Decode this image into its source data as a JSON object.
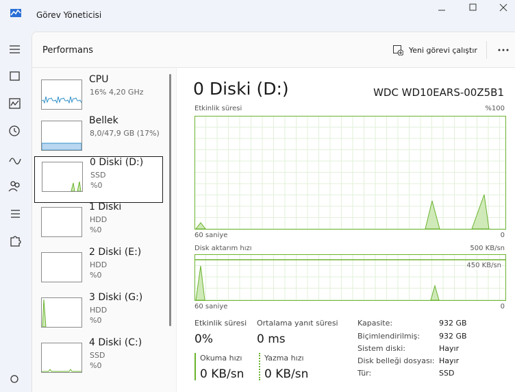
{
  "window": {
    "title": "Görev Yöneticisi"
  },
  "header": {
    "title": "Performans",
    "new_task": "Yeni görevi çalıştır"
  },
  "sidebar": [
    {
      "name": "CPU",
      "detail": "16% 4,20 GHz"
    },
    {
      "name": "Bellek",
      "detail": "8,0/47,9 GB (17%)"
    },
    {
      "name": "0 Diski (D:)",
      "detail": "SSD",
      "usage": "%0"
    },
    {
      "name": "1 Diski",
      "detail": "HDD",
      "usage": "%0"
    },
    {
      "name": "2 Diski (E:)",
      "detail": "HDD",
      "usage": "%0"
    },
    {
      "name": "3 Diski (G:)",
      "detail": "HDD",
      "usage": "%0"
    },
    {
      "name": "4 Diski (C:)",
      "detail": "SSD",
      "usage": "%0"
    }
  ],
  "main": {
    "title": "0 Diski (D:)",
    "model": "WDC WD10EARS-00Z5B1",
    "activity_chart": {
      "label": "Etkinlik süresi",
      "max": "%100",
      "x_left": "60 saniye",
      "x_right": "0"
    },
    "transfer_chart": {
      "label": "Disk aktarım hızı",
      "max": "500 KB/sn",
      "line_label": "450 KB/sn",
      "x_left": "60 saniye",
      "x_right": "0"
    },
    "stats": [
      {
        "label": "Etkinlik süresi",
        "value": "0%"
      },
      {
        "label": "Ortalama yanıt süresi",
        "value": "0 ms"
      },
      {
        "label": "Okuma hızı",
        "value": "0 KB/sn"
      },
      {
        "label": "Yazma hızı",
        "value": "0 KB/sn"
      }
    ],
    "properties": [
      {
        "label": "Kapasite:",
        "value": "932 GB"
      },
      {
        "label": "Biçimlendirilmiş:",
        "value": "932 GB"
      },
      {
        "label": "Sistem diski:",
        "value": "Hayır"
      },
      {
        "label": "Disk belleği dosyası:",
        "value": "Hayır"
      },
      {
        "label": "Tür:",
        "value": "SSD"
      }
    ]
  }
}
